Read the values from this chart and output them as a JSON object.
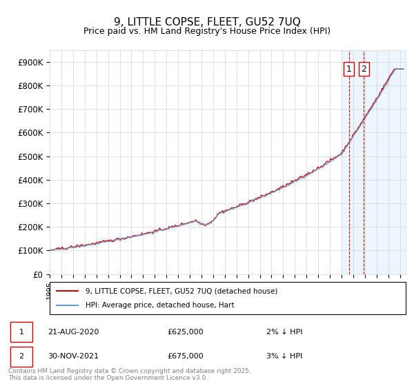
{
  "title": "9, LITTLE COPSE, FLEET, GU52 7UQ",
  "subtitle": "Price paid vs. HM Land Registry's House Price Index (HPI)",
  "ylabel_ticks": [
    "£0",
    "£100K",
    "£200K",
    "£300K",
    "£400K",
    "£500K",
    "£600K",
    "£700K",
    "£800K",
    "£900K"
  ],
  "ylim": [
    0,
    950000
  ],
  "xlim_start": 1995.0,
  "xlim_end": 2025.5,
  "line1_color": "#cc0000",
  "line2_color": "#6699cc",
  "legend_label1": "9, LITTLE COPSE, FLEET, GU52 7UQ (detached house)",
  "legend_label2": "HPI: Average price, detached house, Hart",
  "transaction1_label": "1",
  "transaction1_date": "21-AUG-2020",
  "transaction1_price": "£625,000",
  "transaction1_note": "2% ↓ HPI",
  "transaction2_label": "2",
  "transaction2_date": "30-NOV-2021",
  "transaction2_price": "£675,000",
  "transaction2_note": "3% ↓ HPI",
  "footer": "Contains HM Land Registry data © Crown copyright and database right 2025.\nThis data is licensed under the Open Government Licence v3.0.",
  "marker1_x": 2020.64,
  "marker1_y": 625000,
  "marker2_x": 2021.92,
  "marker2_y": 675000,
  "bg_shade_x1": 2020.0,
  "bg_shade_x2": 2025.5
}
